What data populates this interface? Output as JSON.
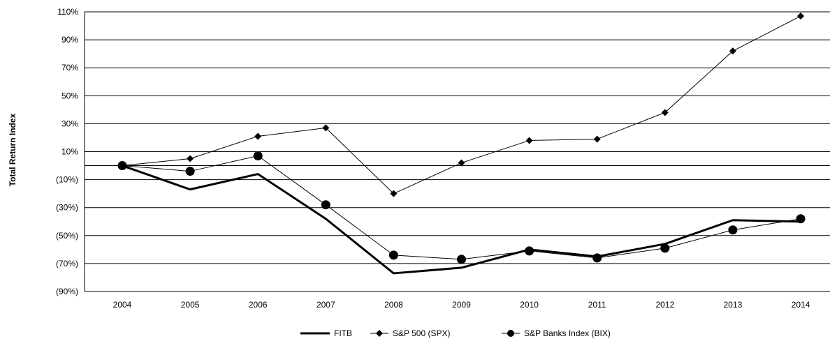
{
  "chart_data": {
    "type": "line",
    "title": "",
    "xlabel": "",
    "ylabel": "Total Return Index",
    "categories": [
      "2004",
      "2005",
      "2006",
      "2007",
      "2008",
      "2009",
      "2010",
      "2011",
      "2012",
      "2013",
      "2014"
    ],
    "y_ticks": [
      {
        "value": 110,
        "label": "110%"
      },
      {
        "value": 90,
        "label": "90%"
      },
      {
        "value": 70,
        "label": "70%"
      },
      {
        "value": 50,
        "label": "50%"
      },
      {
        "value": 30,
        "label": "30%"
      },
      {
        "value": 10,
        "label": "10%"
      },
      {
        "value": -10,
        "label": "(10%)"
      },
      {
        "value": -30,
        "label": "(30%)"
      },
      {
        "value": -50,
        "label": "(50%)"
      },
      {
        "value": -70,
        "label": "(70%)"
      },
      {
        "value": -90,
        "label": "(90%)"
      }
    ],
    "ylim": [
      -90,
      110
    ],
    "grid": true,
    "zero_line": true,
    "legend_position": "bottom-center",
    "series": [
      {
        "name": "FITB",
        "marker": "none",
        "stroke_width": 3,
        "values": [
          0,
          -17,
          -6,
          -38,
          -77,
          -73,
          -60,
          -65,
          -56,
          -39,
          -40
        ]
      },
      {
        "name": "S&P 500  (SPX)",
        "marker": "diamond",
        "stroke_width": 1,
        "values": [
          0,
          5,
          21,
          27,
          -20,
          2,
          18,
          19,
          38,
          82,
          107
        ]
      },
      {
        "name": "S&P Banks  Index  (BIX)",
        "marker": "circle",
        "stroke_width": 1,
        "values": [
          0,
          -4,
          7,
          -28,
          -64,
          -67,
          -61,
          -66,
          -59,
          -46,
          -38
        ]
      }
    ]
  }
}
